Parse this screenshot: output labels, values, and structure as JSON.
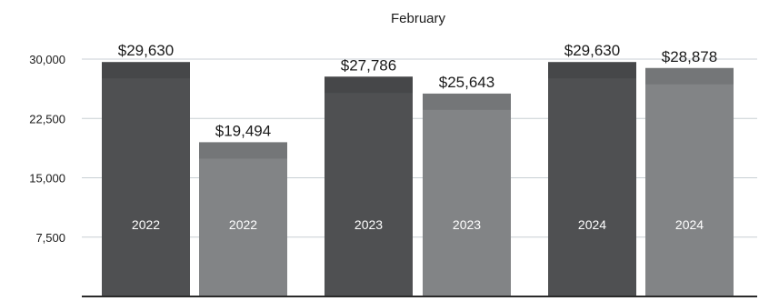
{
  "chart_data": {
    "type": "bar",
    "title": "February",
    "xlabel": "",
    "ylabel": "",
    "ylim": [
      0,
      31500
    ],
    "yticks": [
      7500,
      15000,
      22500,
      30000
    ],
    "ytick_labels": [
      "7,500",
      "15,000",
      "22,500",
      "30,000"
    ],
    "grid": true,
    "legend": "none",
    "bars": [
      {
        "label": "2022",
        "value": 29630,
        "value_label": "$29,630",
        "color": "#4f5052"
      },
      {
        "label": "2022",
        "value": 19494,
        "value_label": "$19,494",
        "color": "#828486"
      },
      {
        "label": "2023",
        "value": 27786,
        "value_label": "$27,786",
        "color": "#4f5052"
      },
      {
        "label": "2023",
        "value": 25643,
        "value_label": "$25,643",
        "color": "#828486"
      },
      {
        "label": "2024",
        "value": 29630,
        "value_label": "$29,630",
        "color": "#4f5052"
      },
      {
        "label": "2024",
        "value": 28878,
        "value_label": "$28,878",
        "color": "#828486"
      }
    ],
    "colors": {
      "grid": "#c8cfd4",
      "baseline": "#2a2a2a"
    }
  }
}
